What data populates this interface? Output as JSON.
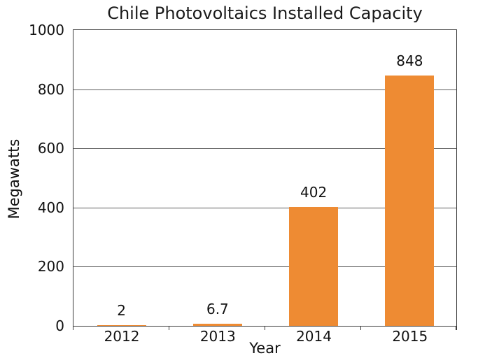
{
  "chart_data": {
    "type": "bar",
    "title": "Chile Photovoltaics Installed Capacity",
    "xlabel": "Year",
    "ylabel": "Megawatts",
    "categories": [
      "2012",
      "2013",
      "2014",
      "2015"
    ],
    "values": [
      2,
      6.7,
      402,
      848
    ],
    "value_labels": [
      "2",
      "6.7",
      "402",
      "848"
    ],
    "ylim": [
      0,
      1000
    ],
    "yticks": [
      0,
      200,
      400,
      600,
      800,
      1000
    ],
    "grid": "horizontal-only",
    "legend": "none",
    "bar_color": "#EE8B33",
    "axis_color": "#3d3d3d",
    "grid_color": "#5c5c5c",
    "text_color": "#111111",
    "background_color": "#ffffff"
  }
}
